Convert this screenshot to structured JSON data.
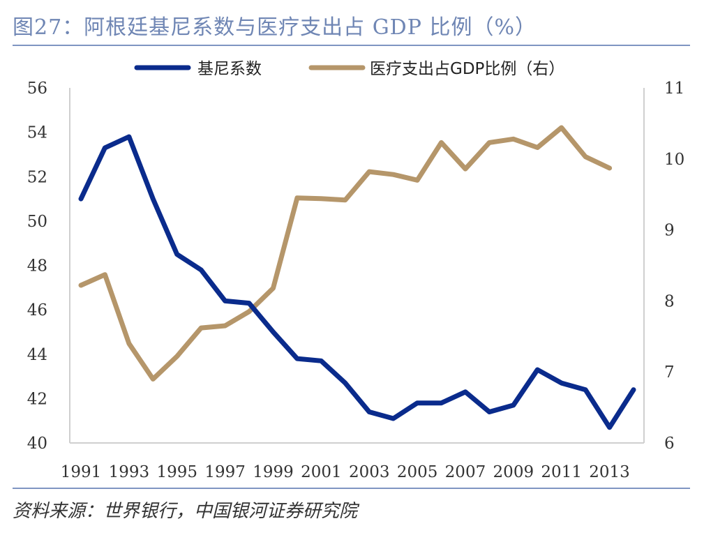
{
  "title": "图27：阿根廷基尼系数与医疗支出占 GDP 比例（%）",
  "source": "资料来源：世界银行，中国银河证券研究院",
  "colors": {
    "gini": "#0a2b8c",
    "health": "#b5966a",
    "axis": "#cfcfcf",
    "accent": "#7f95c2"
  },
  "chart_data": {
    "type": "line",
    "title": "阿根廷基尼系数与医疗支出占 GDP 比例（%）",
    "x": [
      1991,
      1992,
      1993,
      1994,
      1995,
      1996,
      1997,
      1998,
      1999,
      2000,
      2001,
      2002,
      2003,
      2004,
      2005,
      2006,
      2007,
      2008,
      2009,
      2010,
      2011,
      2012,
      2013,
      2014
    ],
    "x_tick_labels": [
      "1991",
      "1993",
      "1995",
      "1997",
      "1999",
      "2001",
      "2003",
      "2005",
      "2007",
      "2009",
      "2011",
      "2013"
    ],
    "y_left": {
      "range": [
        40,
        56
      ],
      "ticks": [
        "40",
        "42",
        "44",
        "46",
        "48",
        "50",
        "52",
        "54",
        "56"
      ]
    },
    "y_right": {
      "range": [
        6,
        11
      ],
      "ticks": [
        "6",
        "7",
        "8",
        "9",
        "10",
        "11"
      ]
    },
    "legend_position": "top-center",
    "series": [
      {
        "name": "基尼系数",
        "axis": "left",
        "values": [
          51.0,
          53.3,
          53.8,
          51.0,
          48.5,
          47.8,
          46.4,
          46.3,
          45.0,
          43.8,
          43.7,
          42.7,
          41.4,
          41.1,
          41.8,
          41.8,
          42.3,
          41.4,
          41.7,
          43.3,
          42.7,
          42.4,
          40.7,
          42.4
        ]
      },
      {
        "name": "医疗支出占GDP比例（右）",
        "axis": "right",
        "values": [
          8.22,
          8.37,
          7.4,
          6.9,
          7.22,
          7.62,
          7.65,
          7.85,
          8.18,
          9.45,
          9.44,
          9.42,
          9.82,
          9.78,
          9.7,
          10.23,
          9.86,
          10.23,
          10.28,
          10.16,
          10.44,
          10.03,
          9.87,
          null
        ]
      }
    ]
  }
}
